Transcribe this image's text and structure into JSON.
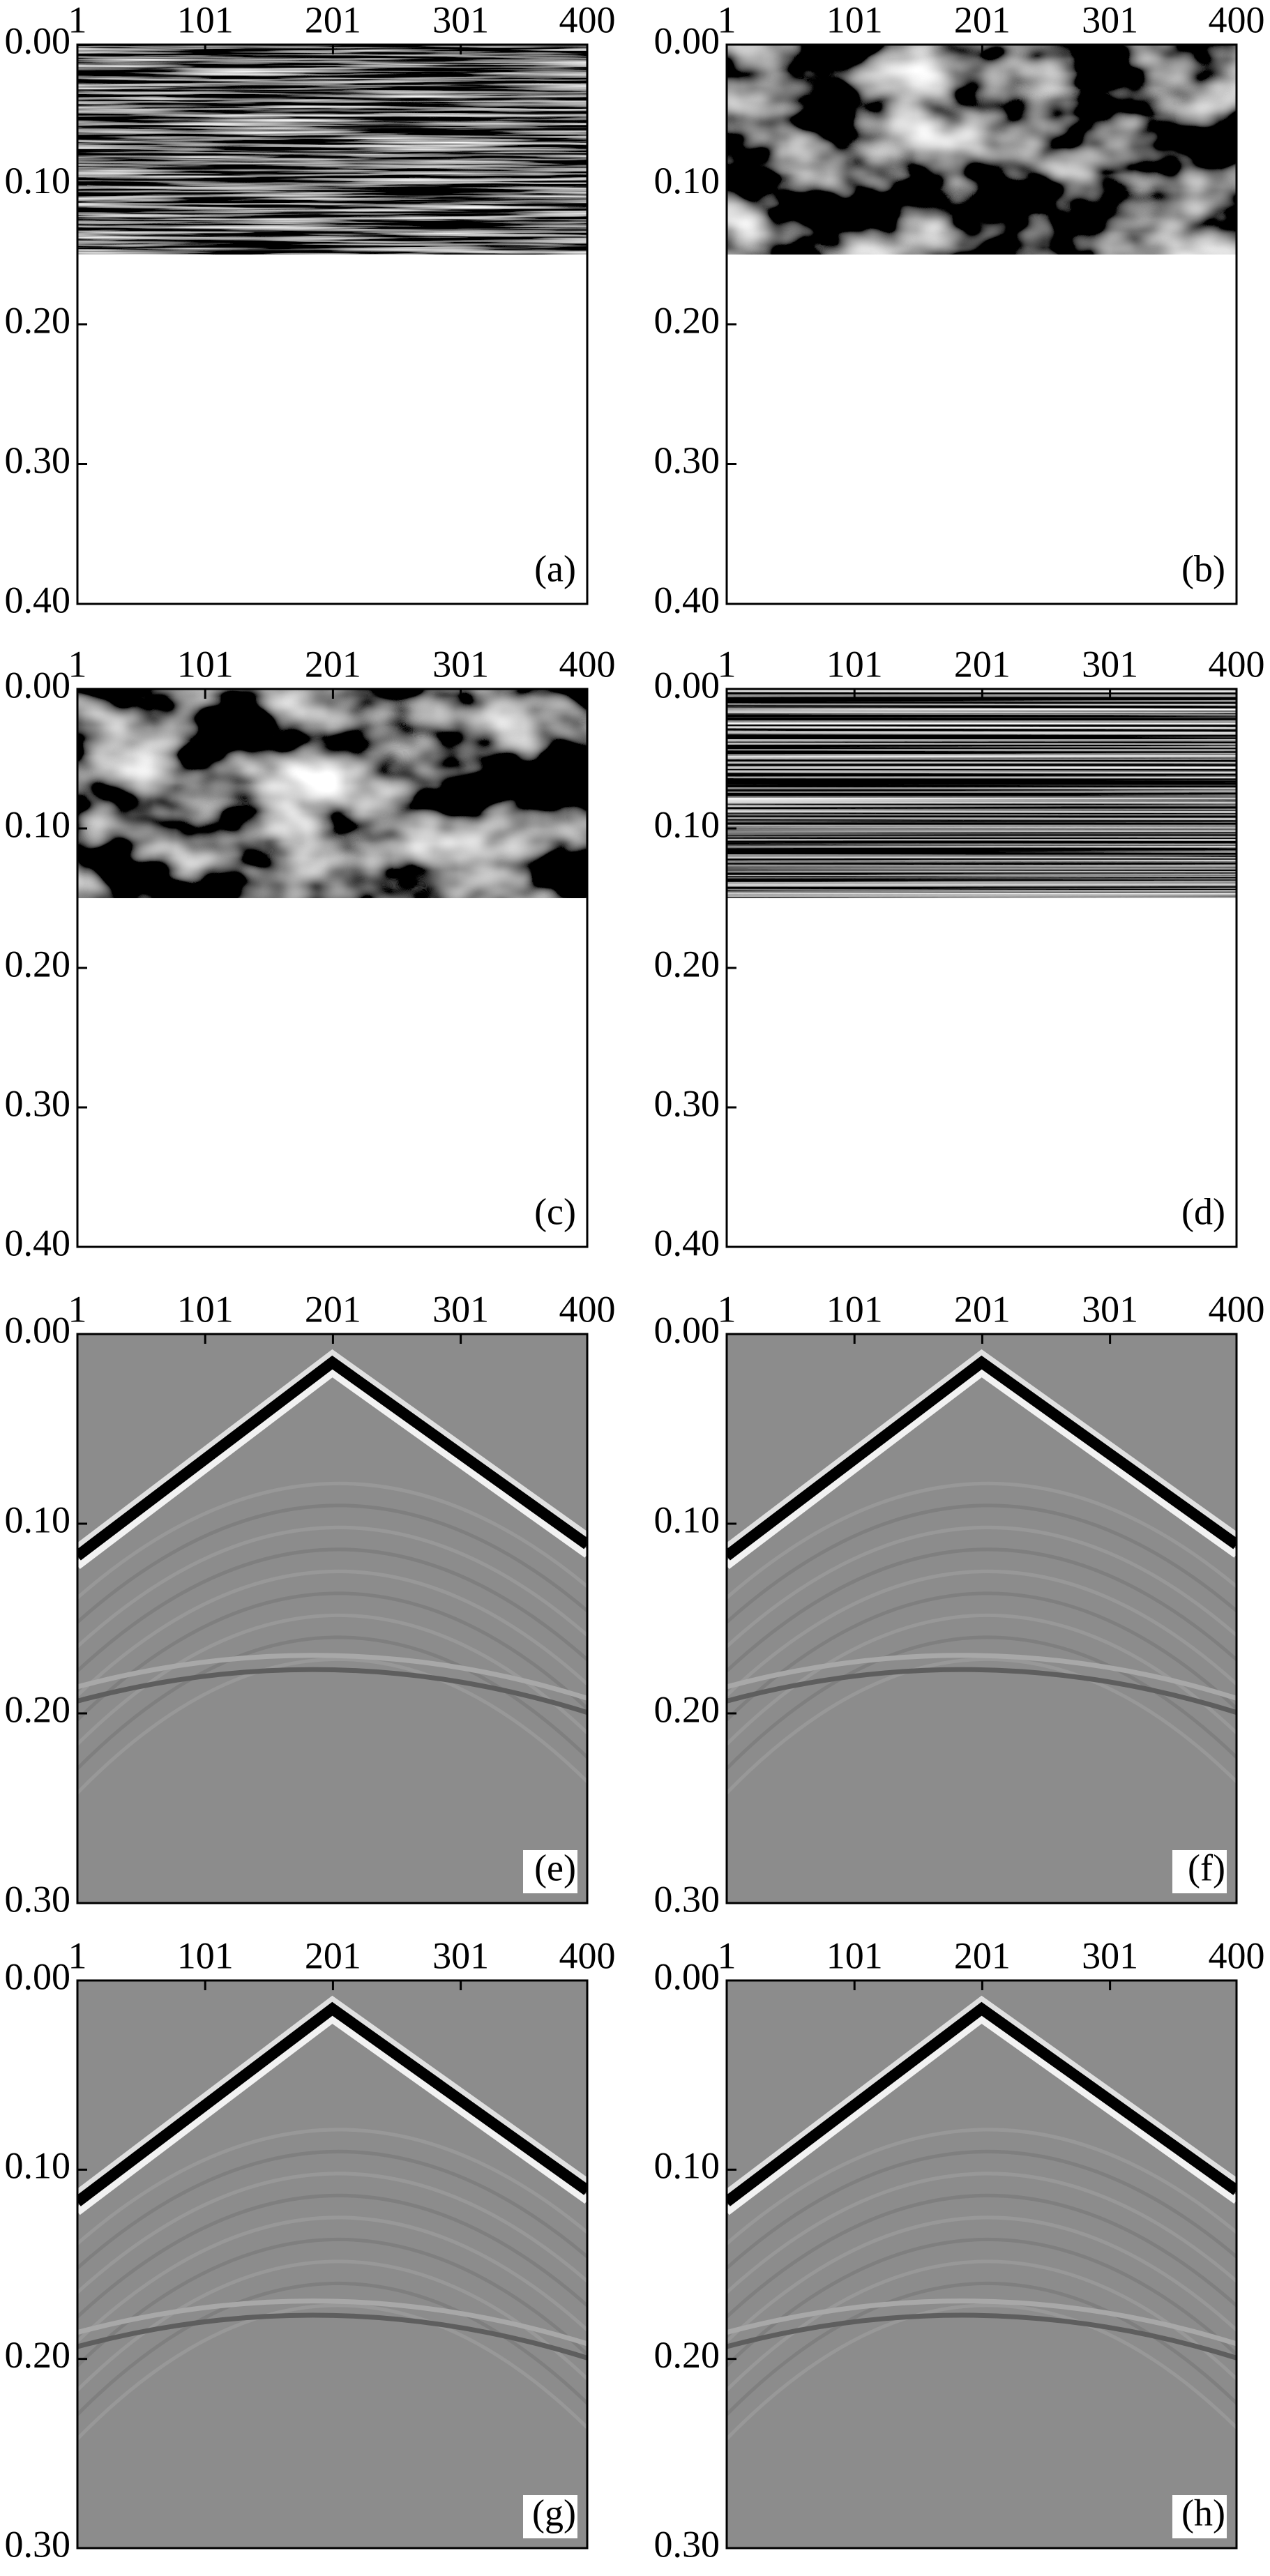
{
  "chart_data": [
    {
      "type": "noise-fine",
      "annotation": "(a)",
      "xlim": [
        1,
        400
      ],
      "ylim": [
        0,
        0.4
      ],
      "xticks": [
        1,
        101,
        201,
        301,
        400
      ],
      "yticks": [
        {
          "value": 0,
          "label": "0.00"
        },
        {
          "value": 0.1,
          "label": "0.10"
        },
        {
          "value": 0.2,
          "label": "0.20"
        },
        {
          "value": 0.3,
          "label": "0.30"
        },
        {
          "value": 0.4,
          "label": "0.40"
        }
      ]
    },
    {
      "type": "noise-blotch",
      "annotation": "(b)",
      "xlim": [
        1,
        400
      ],
      "ylim": [
        0,
        0.4
      ],
      "xticks": [
        1,
        101,
        201,
        301,
        400
      ],
      "yticks": [
        {
          "value": 0,
          "label": "0.00"
        },
        {
          "value": 0.1,
          "label": "0.10"
        },
        {
          "value": 0.2,
          "label": "0.20"
        },
        {
          "value": 0.3,
          "label": "0.30"
        },
        {
          "value": 0.4,
          "label": "0.40"
        }
      ]
    },
    {
      "type": "noise-blotch",
      "annotation": "(c)",
      "xlim": [
        1,
        400
      ],
      "ylim": [
        0,
        0.4
      ],
      "xticks": [
        1,
        101,
        201,
        301,
        400
      ],
      "yticks": [
        {
          "value": 0,
          "label": "0.00"
        },
        {
          "value": 0.1,
          "label": "0.10"
        },
        {
          "value": 0.2,
          "label": "0.20"
        },
        {
          "value": 0.3,
          "label": "0.30"
        },
        {
          "value": 0.4,
          "label": "0.40"
        }
      ]
    },
    {
      "type": "noise-stripes",
      "annotation": "(d)",
      "xlim": [
        1,
        400
      ],
      "ylim": [
        0,
        0.4
      ],
      "xticks": [
        1,
        101,
        201,
        301,
        400
      ],
      "yticks": [
        {
          "value": 0,
          "label": "0.00"
        },
        {
          "value": 0.1,
          "label": "0.10"
        },
        {
          "value": 0.2,
          "label": "0.20"
        },
        {
          "value": 0.3,
          "label": "0.30"
        },
        {
          "value": 0.4,
          "label": "0.40"
        }
      ]
    },
    {
      "type": "seismic",
      "annotation": "(e)",
      "xlim": [
        1,
        400
      ],
      "ylim": [
        0,
        0.3
      ],
      "xticks": [
        1,
        101,
        201,
        301,
        400
      ],
      "yticks": [
        {
          "value": 0,
          "label": "0.00"
        },
        {
          "value": 0.1,
          "label": "0.10"
        },
        {
          "value": 0.2,
          "label": "0.20"
        },
        {
          "value": 0.3,
          "label": "0.30"
        }
      ]
    },
    {
      "type": "seismic",
      "annotation": "(f)",
      "xlim": [
        1,
        400
      ],
      "ylim": [
        0,
        0.3
      ],
      "xticks": [
        1,
        101,
        201,
        301,
        400
      ],
      "yticks": [
        {
          "value": 0,
          "label": "0.00"
        },
        {
          "value": 0.1,
          "label": "0.10"
        },
        {
          "value": 0.2,
          "label": "0.20"
        },
        {
          "value": 0.3,
          "label": "0.30"
        }
      ]
    },
    {
      "type": "seismic",
      "annotation": "(g)",
      "xlim": [
        1,
        400
      ],
      "ylim": [
        0,
        0.3
      ],
      "xticks": [
        1,
        101,
        201,
        301,
        400
      ],
      "yticks": [
        {
          "value": 0,
          "label": "0.00"
        },
        {
          "value": 0.1,
          "label": "0.10"
        },
        {
          "value": 0.2,
          "label": "0.20"
        },
        {
          "value": 0.3,
          "label": "0.30"
        }
      ]
    },
    {
      "type": "seismic",
      "annotation": "(h)",
      "xlim": [
        1,
        400
      ],
      "ylim": [
        0,
        0.3
      ],
      "xticks": [
        1,
        101,
        201,
        301,
        400
      ],
      "yticks": [
        {
          "value": 0,
          "label": "0.00"
        },
        {
          "value": 0.1,
          "label": "0.10"
        },
        {
          "value": 0.2,
          "label": "0.20"
        },
        {
          "value": 0.3,
          "label": "0.30"
        }
      ]
    }
  ]
}
